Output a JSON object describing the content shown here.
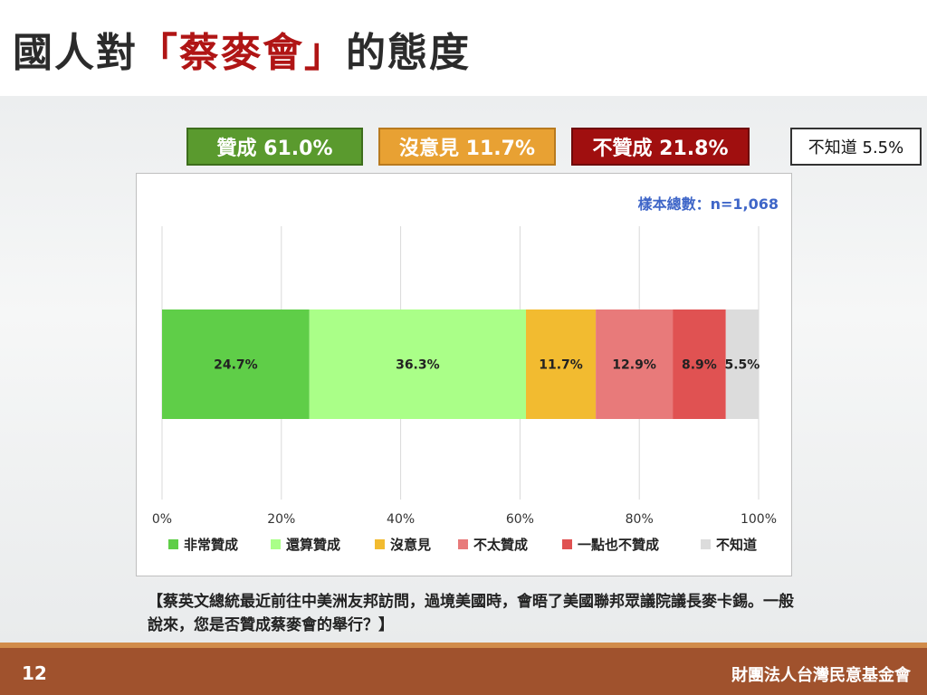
{
  "title": {
    "prefix": "國人對",
    "highlight": "「蔡麥會」",
    "suffix": "的態度"
  },
  "summary": {
    "agree": "贊成 61.0%",
    "neutral": "沒意見 11.7%",
    "disagree": "不贊成 21.8%",
    "unknown": "不知道 5.5%"
  },
  "sample_size": "樣本總數：n=1,068",
  "question": "【蔡英文總統最近前往中美洲友邦訪問，過境美國時，會晤了美國聯邦眾議院議長麥卡錫。一般說來，您是否贊成蔡麥會的舉行？】",
  "footer": {
    "page_number": "12",
    "organization": "財團法人台灣民意基金會"
  },
  "colors": {
    "agree": "#5a9a2e",
    "neutral": "#e8a133",
    "disagree": "#a00f0f"
  },
  "chart_data": {
    "type": "bar",
    "orientation": "horizontal",
    "stacked": true,
    "xlim": [
      0,
      100
    ],
    "x_ticks": [
      "0%",
      "20%",
      "40%",
      "60%",
      "80%",
      "100%"
    ],
    "grid": true,
    "legend_position": "bottom",
    "series": [
      {
        "name": "非常贊成",
        "value": 24.7,
        "label": "24.7%",
        "color": "#5fce48"
      },
      {
        "name": "還算贊成",
        "value": 36.3,
        "label": "36.3%",
        "color": "#aaff88"
      },
      {
        "name": "沒意見",
        "value": 11.7,
        "label": "11.7%",
        "color": "#f2bb30"
      },
      {
        "name": "不太贊成",
        "value": 12.9,
        "label": "12.9%",
        "color": "#e87a7a"
      },
      {
        "name": "一點也不贊成",
        "value": 8.9,
        "label": "8.9%",
        "color": "#e05252"
      },
      {
        "name": "不知道",
        "value": 5.5,
        "label": "5.5%",
        "color": "#dcdcdc"
      }
    ]
  }
}
